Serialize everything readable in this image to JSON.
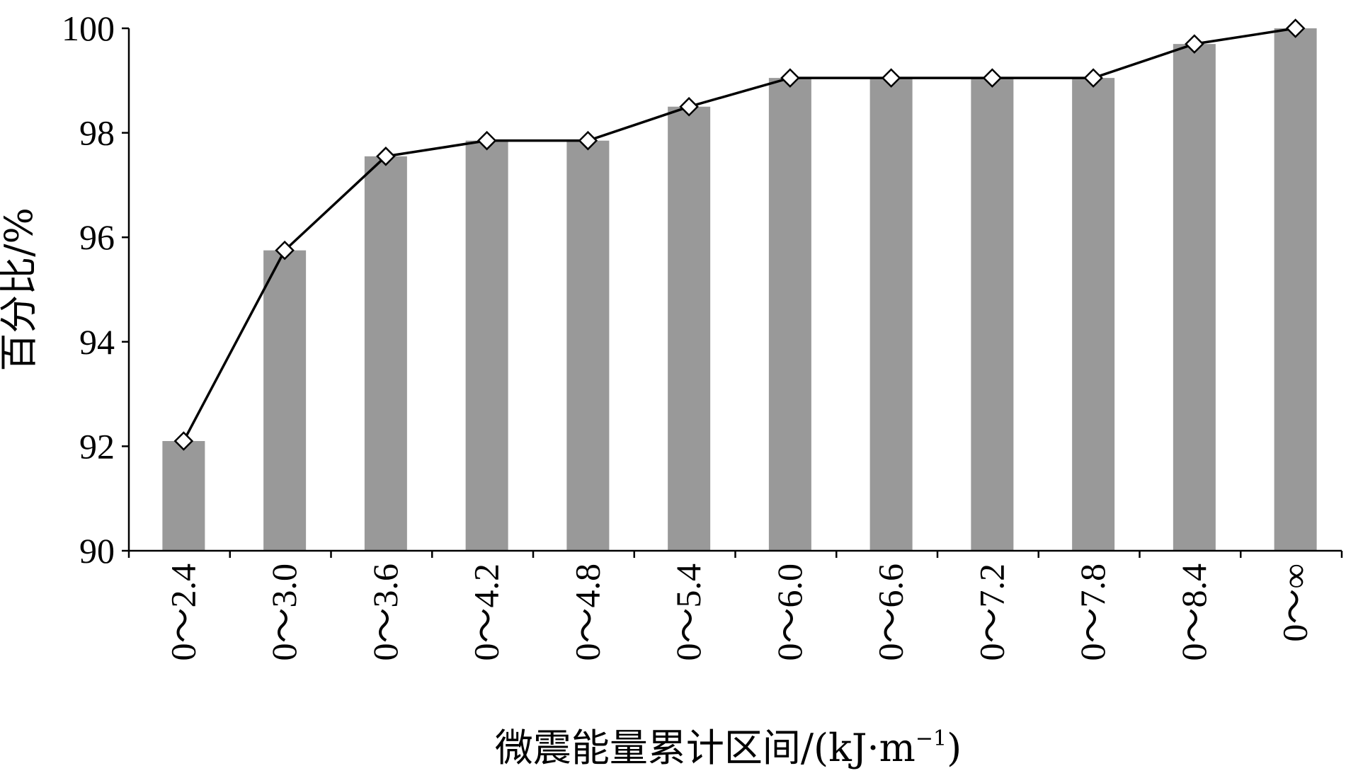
{
  "chart_data": {
    "type": "bar",
    "xlabel_main": "微震能量累计区间/(kJ·m",
    "xlabel_sup": "−1",
    "xlabel_end": ")",
    "ylabel": "百分比/%",
    "ylim": [
      90,
      100
    ],
    "yticks": [
      90,
      92,
      94,
      96,
      98,
      100
    ],
    "categories": [
      "0～2.4",
      "0～3.0",
      "0～3.6",
      "0～4.2",
      "0～4.8",
      "0～5.4",
      "0～6.0",
      "0～6.6",
      "0～7.2",
      "0～7.8",
      "0～8.4",
      "0～∞"
    ],
    "series": [
      {
        "type": "bar",
        "values": [
          92.1,
          95.75,
          97.55,
          97.85,
          97.85,
          98.5,
          99.05,
          99.05,
          99.05,
          99.05,
          99.7,
          100.0
        ],
        "color": "#999999"
      },
      {
        "type": "line",
        "marker": "diamond",
        "values": [
          92.1,
          95.75,
          97.55,
          97.85,
          97.85,
          98.5,
          99.05,
          99.05,
          99.05,
          99.05,
          99.7,
          100.0
        ],
        "color": "#000000"
      }
    ],
    "grid": false,
    "legend": "none"
  }
}
